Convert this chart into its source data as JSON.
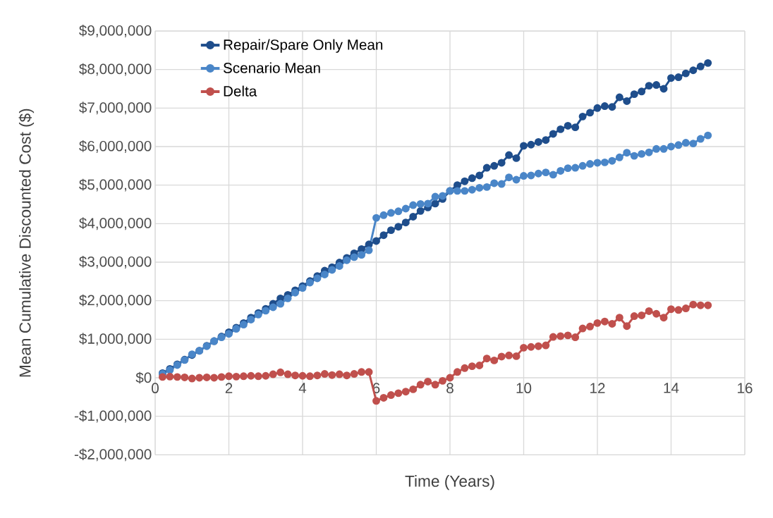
{
  "chart_data": {
    "type": "line",
    "xlabel": "Time (Years)",
    "ylabel": "Mean Cumulative Discounted Cost ($)",
    "x": [
      0.2,
      0.4,
      0.6,
      0.8,
      1.0,
      1.2,
      1.4,
      1.6,
      1.8,
      2.0,
      2.2,
      2.4,
      2.6,
      2.8,
      3.0,
      3.2,
      3.4,
      3.6,
      3.8,
      4.0,
      4.2,
      4.4,
      4.6,
      4.8,
      5.0,
      5.2,
      5.4,
      5.6,
      5.8,
      6.0,
      6.2,
      6.4,
      6.6,
      6.8,
      7.0,
      7.2,
      7.4,
      7.6,
      7.8,
      8.0,
      8.2,
      8.4,
      8.6,
      8.8,
      9.0,
      9.2,
      9.4,
      9.6,
      9.8,
      10.0,
      10.2,
      10.4,
      10.6,
      10.8,
      11.0,
      11.2,
      11.4,
      11.6,
      11.8,
      12.0,
      12.2,
      12.4,
      12.6,
      12.8,
      13.0,
      13.2,
      13.4,
      13.6,
      13.8,
      14.0,
      14.2,
      14.4,
      14.6,
      14.8,
      15.0
    ],
    "series": [
      {
        "name": "Repair/Spare Only Mean",
        "color": "#1f4e8c",
        "values": [
          120000,
          230000,
          350000,
          470000,
          590000,
          700000,
          830000,
          950000,
          1070000,
          1180000,
          1300000,
          1420000,
          1560000,
          1680000,
          1790000,
          1920000,
          2060000,
          2150000,
          2270000,
          2380000,
          2510000,
          2640000,
          2780000,
          2870000,
          2990000,
          3110000,
          3230000,
          3340000,
          3460000,
          3550000,
          3700000,
          3830000,
          3920000,
          4030000,
          4180000,
          4330000,
          4420000,
          4520000,
          4640000,
          4850000,
          5000000,
          5100000,
          5180000,
          5250000,
          5450000,
          5500000,
          5580000,
          5780000,
          5700000,
          6020000,
          6050000,
          6120000,
          6170000,
          6330000,
          6450000,
          6540000,
          6500000,
          6780000,
          6880000,
          7000000,
          7050000,
          7030000,
          7280000,
          7180000,
          7360000,
          7430000,
          7580000,
          7600000,
          7500000,
          7780000,
          7800000,
          7900000,
          7980000,
          8080000,
          8170000
        ]
      },
      {
        "name": "Scenario Mean",
        "color": "#4a86c8",
        "values": [
          100000,
          200000,
          330000,
          460000,
          610000,
          700000,
          820000,
          950000,
          1050000,
          1140000,
          1270000,
          1380000,
          1510000,
          1640000,
          1740000,
          1830000,
          1920000,
          2060000,
          2210000,
          2330000,
          2470000,
          2580000,
          2680000,
          2800000,
          2900000,
          3050000,
          3130000,
          3190000,
          3310000,
          4150000,
          4220000,
          4280000,
          4320000,
          4390000,
          4480000,
          4510000,
          4520000,
          4700000,
          4720000,
          4850000,
          4850000,
          4850000,
          4880000,
          4930000,
          4950000,
          5050000,
          5030000,
          5200000,
          5140000,
          5240000,
          5250000,
          5300000,
          5330000,
          5270000,
          5370000,
          5440000,
          5450000,
          5500000,
          5550000,
          5580000,
          5590000,
          5630000,
          5720000,
          5840000,
          5760000,
          5810000,
          5850000,
          5940000,
          5940000,
          6000000,
          6040000,
          6100000,
          6080000,
          6200000,
          6290000
        ]
      },
      {
        "name": "Delta",
        "color": "#c0504d",
        "values": [
          20000,
          30000,
          20000,
          10000,
          -20000,
          0,
          10000,
          0,
          20000,
          40000,
          30000,
          40000,
          50000,
          40000,
          50000,
          90000,
          140000,
          90000,
          60000,
          50000,
          40000,
          60000,
          100000,
          70000,
          90000,
          60000,
          100000,
          150000,
          150000,
          -600000,
          -520000,
          -450000,
          -400000,
          -360000,
          -300000,
          -180000,
          -100000,
          -180000,
          -80000,
          0,
          150000,
          250000,
          300000,
          320000,
          500000,
          450000,
          550000,
          580000,
          560000,
          780000,
          800000,
          820000,
          840000,
          1060000,
          1080000,
          1100000,
          1050000,
          1280000,
          1330000,
          1420000,
          1460000,
          1400000,
          1560000,
          1340000,
          1600000,
          1620000,
          1730000,
          1660000,
          1560000,
          1780000,
          1760000,
          1800000,
          1900000,
          1880000,
          1880000
        ]
      }
    ],
    "xlim": [
      0,
      16
    ],
    "xticks": [
      0,
      2,
      4,
      6,
      8,
      10,
      12,
      14,
      16
    ],
    "ylim": [
      -2000000,
      9000000
    ],
    "yticks": [
      {
        "value": -2000000,
        "label": "-$2,000,000"
      },
      {
        "value": -1000000,
        "label": "-$1,000,000"
      },
      {
        "value": 0,
        "label": "$0"
      },
      {
        "value": 1000000,
        "label": "$1,000,000"
      },
      {
        "value": 2000000,
        "label": "$2,000,000"
      },
      {
        "value": 3000000,
        "label": "$3,000,000"
      },
      {
        "value": 4000000,
        "label": "$4,000,000"
      },
      {
        "value": 5000000,
        "label": "$5,000,000"
      },
      {
        "value": 6000000,
        "label": "$6,000,000"
      },
      {
        "value": 7000000,
        "label": "$7,000,000"
      },
      {
        "value": 8000000,
        "label": "$8,000,000"
      },
      {
        "value": 9000000,
        "label": "$9,000,000"
      }
    ],
    "grid": true,
    "legend": "top left",
    "marker": "circle",
    "line_style": "solid"
  }
}
